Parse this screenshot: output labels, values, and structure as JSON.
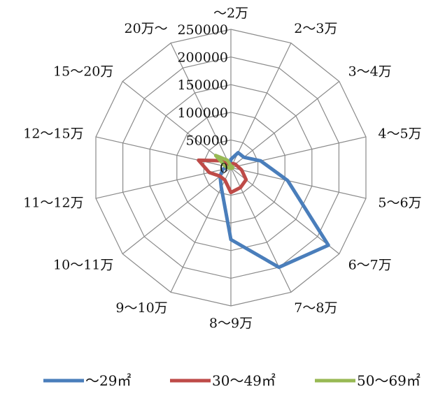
{
  "chart_data": {
    "type": "radar",
    "categories": [
      "～2万",
      "2～3万",
      "3～4万",
      "4～5万",
      "5～6万",
      "6～7万",
      "7～8万",
      "8～9万",
      "9～10万",
      "10～11万",
      "11～12万",
      "12～15万",
      "15～20万",
      "20万～"
    ],
    "ticks": [
      "0",
      "50000",
      "100000",
      "150000",
      "200000",
      "250000"
    ],
    "rmax": 250000,
    "grid": true,
    "legend_position": "bottom",
    "series": [
      {
        "name": "～29㎡",
        "color": "#4a7ebb",
        "values": [
          15000,
          30000,
          30000,
          55000,
          105000,
          225000,
          200000,
          130000,
          40000,
          25000,
          15000,
          8000,
          5000,
          3000
        ]
      },
      {
        "name": "30～49㎡",
        "color": "#be4b48",
        "values": [
          5000,
          8000,
          10000,
          12000,
          20000,
          35000,
          40000,
          45000,
          25000,
          25000,
          40000,
          60000,
          20000,
          6000
        ]
      },
      {
        "name": "50～69㎡",
        "color": "#98b954",
        "values": [
          3000,
          3000,
          3000,
          3000,
          3000,
          2000,
          1500,
          1000,
          1000,
          1000,
          3000,
          10000,
          35000,
          15000
        ]
      }
    ]
  }
}
